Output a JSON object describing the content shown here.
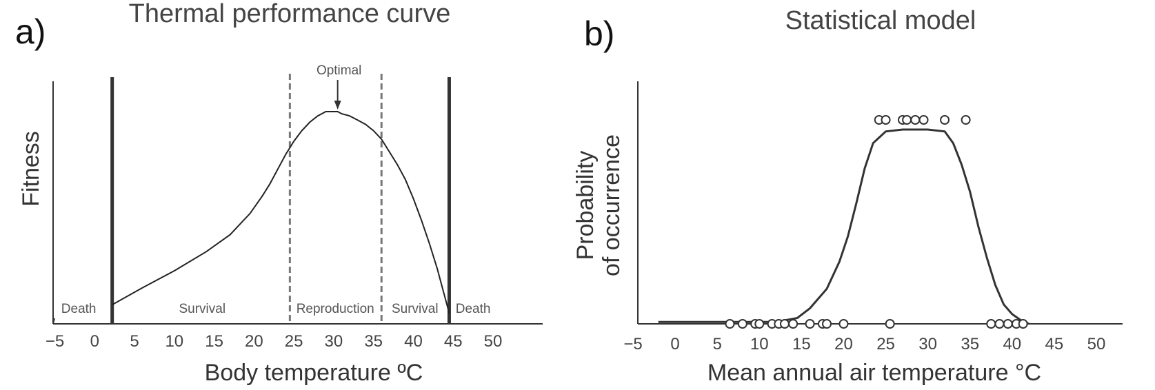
{
  "chart_data": [
    {
      "type": "line",
      "panel_label": "a)",
      "title": "Thermal performance curve",
      "xlabel": "Body temperature ºC",
      "ylabel": "Fitness",
      "xlim": [
        -5,
        50
      ],
      "xticks": [
        "−5",
        "0",
        "5",
        "10",
        "15",
        "20",
        "25",
        "30",
        "35",
        "40",
        "45",
        "50"
      ],
      "xtick_values": [
        -5,
        0,
        5,
        10,
        15,
        20,
        25,
        30,
        35,
        40,
        45,
        50
      ],
      "y_relative_scale": [
        0,
        1
      ],
      "grid": false,
      "critical_limits": [
        2.2,
        44.5
      ],
      "reproduction_limits": [
        24.5,
        36
      ],
      "optimum": 30.5,
      "curve": {
        "x": [
          2.2,
          6,
          10,
          14,
          17,
          19.5,
          21,
          22,
          23,
          24,
          24.5,
          25,
          26,
          27,
          28,
          29,
          30,
          30.5,
          31,
          32,
          33,
          34,
          35,
          36,
          37,
          38,
          39,
          40,
          41,
          42,
          43,
          44,
          44.5
        ],
        "y": [
          0.09,
          0.17,
          0.25,
          0.34,
          0.42,
          0.52,
          0.6,
          0.66,
          0.73,
          0.8,
          0.83,
          0.86,
          0.91,
          0.95,
          0.98,
          1.0,
          1.0,
          1.0,
          0.99,
          0.98,
          0.96,
          0.94,
          0.91,
          0.87,
          0.81,
          0.75,
          0.68,
          0.59,
          0.49,
          0.38,
          0.26,
          0.12,
          0.05
        ]
      },
      "annotations": [
        {
          "text": "Optimal",
          "x": 30.5
        }
      ],
      "zones": [
        {
          "text": "Death",
          "x": -2
        },
        {
          "text": "Survival",
          "x": 13.5
        },
        {
          "text": "Reproduction",
          "x": 30.2
        },
        {
          "text": "Survival",
          "x": 40.2
        },
        {
          "text": "Death",
          "x": 47.5
        }
      ]
    },
    {
      "type": "line",
      "panel_label": "b)",
      "title": "Statistical model",
      "xlabel": "Mean annual air temperature °C",
      "ylabel_lines": [
        "Probability",
        "of occurrence"
      ],
      "xlim": [
        -5,
        50
      ],
      "xticks": [
        "−5",
        "0",
        "5",
        "10",
        "15",
        "20",
        "25",
        "30",
        "35",
        "40",
        "45",
        "50"
      ],
      "xtick_values": [
        -5,
        0,
        5,
        10,
        15,
        20,
        25,
        30,
        35,
        40,
        45,
        50
      ],
      "ylim": [
        0,
        1
      ],
      "grid": false,
      "curve": {
        "x": [
          -2,
          12,
          14.5,
          16,
          18,
          19.5,
          20.5,
          21.5,
          22.5,
          23.5,
          25,
          27,
          30,
          32,
          33,
          34,
          35,
          36,
          37,
          38,
          39,
          40,
          41,
          42
        ],
        "y": [
          0.01,
          0.01,
          0.03,
          0.08,
          0.18,
          0.32,
          0.45,
          0.62,
          0.8,
          0.93,
          0.99,
          1.0,
          1.0,
          0.99,
          0.93,
          0.82,
          0.68,
          0.5,
          0.34,
          0.2,
          0.1,
          0.05,
          0.02,
          0.0
        ]
      },
      "absence_points": [
        6.5,
        8,
        9.5,
        10,
        11.5,
        12.3,
        13,
        14,
        16,
        17.5,
        18,
        20,
        25.5,
        37.5,
        38.5,
        39.5,
        40.5,
        41.3
      ],
      "presence_points": [
        24.2,
        25,
        27,
        27.5,
        28.5,
        29.5,
        32,
        34.5
      ]
    }
  ]
}
